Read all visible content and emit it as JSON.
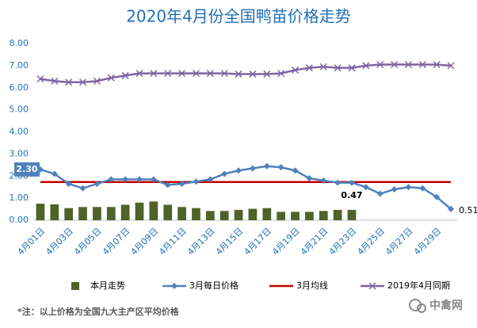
{
  "chart_data": {
    "type": "combo",
    "title": "2020年4月份全国鸭苗价格走势",
    "categories": [
      "4月01日",
      null,
      "4月03日",
      null,
      "4月05日",
      null,
      "4月07日",
      null,
      "4月09日",
      null,
      "4月11日",
      null,
      "4月13日",
      null,
      "4月15日",
      null,
      "4月17日",
      null,
      "4月19日",
      null,
      "4月21日",
      null,
      "4月23日",
      null,
      "4月25日",
      null,
      "4月27日",
      null,
      "4月29日",
      null
    ],
    "ylim": [
      0,
      8
    ],
    "yticks": [
      {
        "value": 0,
        "label": "0.00"
      },
      {
        "value": 1,
        "label": "1.00"
      },
      {
        "value": 2,
        "label": "2.00"
      },
      {
        "value": 3,
        "label": "3.00"
      },
      {
        "value": 4,
        "label": "4.00"
      },
      {
        "value": 5,
        "label": "5.00"
      },
      {
        "value": 6,
        "label": "6.00"
      },
      {
        "value": 7,
        "label": "7.00"
      },
      {
        "value": 8,
        "label": "8.00"
      }
    ],
    "grid": false,
    "series": [
      {
        "name": "本月走势",
        "type": "bar",
        "color": "#4f6228",
        "values": [
          0.75,
          0.72,
          0.55,
          0.6,
          0.6,
          0.6,
          0.7,
          0.8,
          0.85,
          0.7,
          0.6,
          0.55,
          0.42,
          0.42,
          0.47,
          0.52,
          0.55,
          0.38,
          0.38,
          0.38,
          0.42,
          0.47,
          0.47,
          null,
          null,
          null,
          null,
          null,
          null,
          null
        ],
        "value_labels": [
          null,
          null,
          null,
          null,
          null,
          null,
          null,
          null,
          null,
          null,
          null,
          null,
          null,
          null,
          null,
          null,
          null,
          null,
          null,
          null,
          null,
          null,
          "0.47",
          null,
          null,
          null,
          null,
          null,
          null,
          null
        ]
      },
      {
        "name": "3月每日价格",
        "type": "line",
        "marker": "diamond",
        "color": "#4f81bd",
        "values": [
          2.3,
          2.1,
          1.65,
          1.45,
          1.65,
          1.85,
          1.85,
          1.85,
          1.85,
          1.6,
          1.65,
          1.75,
          1.85,
          2.1,
          2.25,
          2.35,
          2.45,
          2.4,
          2.25,
          1.9,
          1.8,
          1.7,
          1.7,
          1.5,
          1.2,
          1.4,
          1.5,
          1.45,
          1.05,
          0.51
        ],
        "value_labels": [
          "2.30",
          null,
          null,
          null,
          null,
          null,
          null,
          null,
          null,
          null,
          null,
          null,
          null,
          null,
          null,
          null,
          null,
          null,
          null,
          null,
          null,
          null,
          null,
          null,
          null,
          null,
          null,
          null,
          null,
          "0.51"
        ]
      },
      {
        "name": "3月均线",
        "type": "line",
        "color": "#c00000",
        "values": [
          1.73,
          1.73,
          1.73,
          1.73,
          1.73,
          1.73,
          1.73,
          1.73,
          1.73,
          1.73,
          1.73,
          1.73,
          1.73,
          1.73,
          1.73,
          1.73,
          1.73,
          1.73,
          1.73,
          1.73,
          1.73,
          1.73,
          1.73,
          1.73,
          1.73,
          1.73,
          1.73,
          1.73,
          1.73,
          1.73
        ]
      },
      {
        "name": "2019年4月同期",
        "type": "line",
        "marker": "x",
        "color": "#8064a2",
        "values": [
          6.4,
          6.3,
          6.25,
          6.25,
          6.3,
          6.45,
          6.55,
          6.65,
          6.65,
          6.65,
          6.65,
          6.65,
          6.65,
          6.65,
          6.62,
          6.62,
          6.62,
          6.65,
          6.8,
          6.9,
          6.95,
          6.9,
          6.9,
          7.0,
          7.05,
          7.05,
          7.05,
          7.05,
          7.05,
          7.0
        ]
      }
    ],
    "footnote": "*注：以上价格为全国九大主产区平均价格",
    "watermark": "中禽网"
  }
}
